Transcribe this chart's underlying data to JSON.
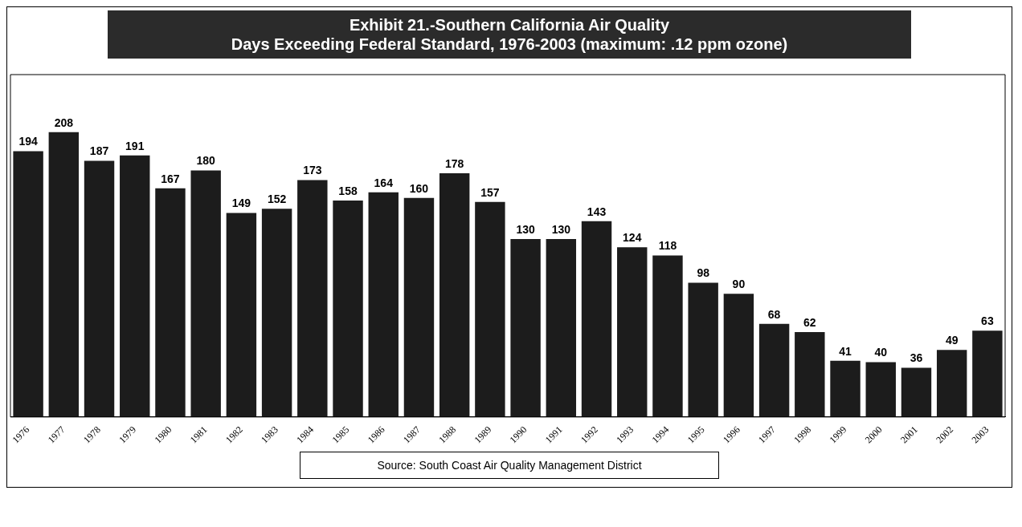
{
  "chart_data": {
    "type": "bar",
    "title": "Exhibit 21.-Southern California Air Quality\nDays Exceeding Federal Standard, 1976-2003 (maximum:  .12 ppm ozone)",
    "categories": [
      "1976",
      "1977",
      "1978",
      "1979",
      "1980",
      "1981",
      "1982",
      "1983",
      "1984",
      "1985",
      "1986",
      "1987",
      "1988",
      "1989",
      "1990",
      "1991",
      "1992",
      "1993",
      "1994",
      "1995",
      "1996",
      "1997",
      "1998",
      "1999",
      "2000",
      "2001",
      "2002",
      "2003"
    ],
    "values": [
      194,
      208,
      187,
      191,
      167,
      180,
      149,
      152,
      173,
      158,
      164,
      160,
      178,
      157,
      130,
      130,
      143,
      124,
      118,
      98,
      90,
      68,
      62,
      41,
      40,
      36,
      49,
      63
    ],
    "color": "#1c1c1c",
    "data_labels": true,
    "legend": false,
    "grid": false,
    "annotations": [
      "Source:  South Coast Air Quality Management District"
    ]
  }
}
